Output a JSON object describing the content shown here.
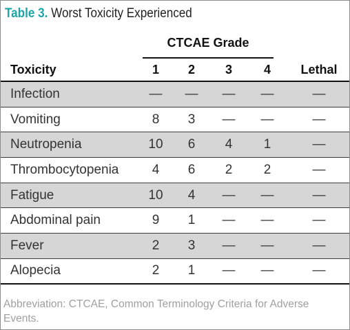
{
  "table": {
    "label": "Table 3.",
    "title": "Worst Toxicity Experienced",
    "grade_header": "CTCAE Grade",
    "columns": [
      "Toxicity",
      "1",
      "2",
      "3",
      "4",
      "Lethal"
    ],
    "rows": [
      {
        "name": "Infection",
        "g1": "—",
        "g2": "—",
        "g3": "—",
        "g4": "—",
        "lethal": "—"
      },
      {
        "name": "Vomiting",
        "g1": "8",
        "g2": "3",
        "g3": "—",
        "g4": "—",
        "lethal": "—"
      },
      {
        "name": "Neutropenia",
        "g1": "10",
        "g2": "6",
        "g3": "4",
        "g4": "1",
        "lethal": "—"
      },
      {
        "name": "Thrombocytopenia",
        "g1": "4",
        "g2": "6",
        "g3": "2",
        "g4": "2",
        "lethal": "—"
      },
      {
        "name": "Fatigue",
        "g1": "10",
        "g2": "4",
        "g3": "—",
        "g4": "—",
        "lethal": "—"
      },
      {
        "name": "Abdominal pain",
        "g1": "9",
        "g2": "1",
        "g3": "—",
        "g4": "—",
        "lethal": "—"
      },
      {
        "name": "Fever",
        "g1": "2",
        "g2": "3",
        "g3": "—",
        "g4": "—",
        "lethal": "—"
      },
      {
        "name": "Alopecia",
        "g1": "2",
        "g2": "1",
        "g3": "—",
        "g4": "—",
        "lethal": "—"
      }
    ],
    "footnote": "Abbreviation: CTCAE, Common Terminology Criteria for Adverse Events."
  },
  "colors": {
    "label": "#1aa6a6",
    "shaded_row": "#d6d6d6",
    "footnote": "#a0a0a0"
  }
}
